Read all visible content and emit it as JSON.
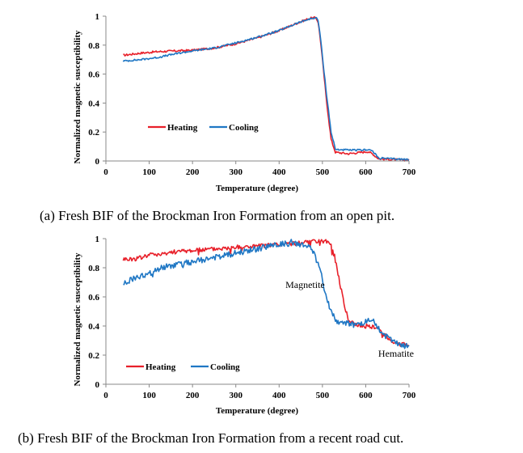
{
  "chart_data": [
    {
      "type": "line",
      "caption": "(a) Fresh BIF of the Brockman Iron Formation from an open pit.",
      "xlabel": "Temperature (degree)",
      "ylabel": "Normalized magnetic susceptibility",
      "xlim": [
        0,
        700
      ],
      "ylim": [
        0,
        1
      ],
      "x_ticks": [
        0,
        100,
        200,
        300,
        400,
        500,
        600,
        700
      ],
      "y_ticks": [
        0,
        0.2,
        0.4,
        0.6,
        0.8,
        1
      ],
      "y_tick_labels": [
        "0",
        "0.2",
        "0.4",
        "0.6",
        "0.8",
        "1"
      ],
      "legend_placement": "left-lower",
      "annotations": [],
      "series": [
        {
          "name": "Heating",
          "color": "#e8202a",
          "points": [
            [
              40,
              0.73
            ],
            [
              80,
              0.745
            ],
            [
              120,
              0.755
            ],
            [
              160,
              0.76
            ],
            [
              200,
              0.765
            ],
            [
              250,
              0.78
            ],
            [
              300,
              0.81
            ],
            [
              350,
              0.85
            ],
            [
              400,
              0.9
            ],
            [
              440,
              0.95
            ],
            [
              470,
              0.985
            ],
            [
              485,
              0.99
            ],
            [
              490,
              0.96
            ],
            [
              495,
              0.85
            ],
            [
              500,
              0.7
            ],
            [
              510,
              0.4
            ],
            [
              520,
              0.15
            ],
            [
              530,
              0.06
            ],
            [
              560,
              0.05
            ],
            [
              590,
              0.06
            ],
            [
              605,
              0.065
            ],
            [
              615,
              0.05
            ],
            [
              630,
              0.015
            ],
            [
              660,
              0.01
            ],
            [
              700,
              0.005
            ]
          ],
          "noise": 0.007
        },
        {
          "name": "Cooling",
          "color": "#1f77c4",
          "points": [
            [
              40,
              0.69
            ],
            [
              80,
              0.7
            ],
            [
              120,
              0.715
            ],
            [
              160,
              0.74
            ],
            [
              200,
              0.76
            ],
            [
              250,
              0.78
            ],
            [
              300,
              0.815
            ],
            [
              350,
              0.855
            ],
            [
              400,
              0.9
            ],
            [
              440,
              0.95
            ],
            [
              470,
              0.98
            ],
            [
              485,
              0.99
            ],
            [
              490,
              0.97
            ],
            [
              495,
              0.87
            ],
            [
              500,
              0.72
            ],
            [
              510,
              0.45
            ],
            [
              520,
              0.2
            ],
            [
              530,
              0.08
            ],
            [
              560,
              0.075
            ],
            [
              590,
              0.075
            ],
            [
              605,
              0.08
            ],
            [
              615,
              0.07
            ],
            [
              630,
              0.02
            ],
            [
              660,
              0.015
            ],
            [
              700,
              0.01
            ]
          ],
          "noise": 0.006
        }
      ]
    },
    {
      "type": "line",
      "caption": "(b) Fresh BIF of the Brockman Iron Formation from a recent road cut.",
      "xlabel": "Temperature (degree)",
      "ylabel": "Normalized magnetic susceptibility",
      "xlim": [
        0,
        700
      ],
      "ylim": [
        0,
        1
      ],
      "x_ticks": [
        0,
        100,
        200,
        300,
        400,
        500,
        600,
        700
      ],
      "y_ticks": [
        0,
        0.2,
        0.4,
        0.6,
        0.8,
        1
      ],
      "y_tick_labels": [
        "0",
        "0.2",
        "0.4",
        "0.6",
        "0.8",
        "1"
      ],
      "legend_placement": "left-lower",
      "annotations": [
        {
          "text": "Magnetite",
          "x": 460,
          "y": 0.66
        },
        {
          "text": "Hematite",
          "x": 670,
          "y": 0.19
        }
      ],
      "series": [
        {
          "name": "Heating",
          "color": "#e8202a",
          "points": [
            [
              40,
              0.86
            ],
            [
              60,
              0.86
            ],
            [
              80,
              0.87
            ],
            [
              100,
              0.89
            ],
            [
              130,
              0.9
            ],
            [
              160,
              0.91
            ],
            [
              200,
              0.92
            ],
            [
              250,
              0.93
            ],
            [
              300,
              0.94
            ],
            [
              350,
              0.95
            ],
            [
              400,
              0.96
            ],
            [
              450,
              0.97
            ],
            [
              490,
              0.98
            ],
            [
              510,
              0.98
            ],
            [
              520,
              0.96
            ],
            [
              530,
              0.85
            ],
            [
              540,
              0.7
            ],
            [
              550,
              0.55
            ],
            [
              560,
              0.45
            ],
            [
              570,
              0.42
            ],
            [
              590,
              0.4
            ],
            [
              610,
              0.4
            ],
            [
              630,
              0.38
            ],
            [
              650,
              0.32
            ],
            [
              670,
              0.28
            ],
            [
              690,
              0.27
            ],
            [
              700,
              0.26
            ]
          ],
          "noise": 0.015
        },
        {
          "name": "Cooling",
          "color": "#1f77c4",
          "points": [
            [
              40,
              0.69
            ],
            [
              60,
              0.72
            ],
            [
              80,
              0.74
            ],
            [
              100,
              0.76
            ],
            [
              130,
              0.8
            ],
            [
              160,
              0.82
            ],
            [
              200,
              0.84
            ],
            [
              250,
              0.87
            ],
            [
              300,
              0.9
            ],
            [
              350,
              0.93
            ],
            [
              400,
              0.96
            ],
            [
              430,
              0.97
            ],
            [
              450,
              0.96
            ],
            [
              470,
              0.94
            ],
            [
              480,
              0.9
            ],
            [
              490,
              0.82
            ],
            [
              500,
              0.72
            ],
            [
              510,
              0.6
            ],
            [
              520,
              0.5
            ],
            [
              530,
              0.44
            ],
            [
              550,
              0.42
            ],
            [
              580,
              0.41
            ],
            [
              610,
              0.44
            ],
            [
              630,
              0.38
            ],
            [
              650,
              0.32
            ],
            [
              670,
              0.28
            ],
            [
              690,
              0.26
            ],
            [
              700,
              0.26
            ]
          ],
          "noise": 0.02
        }
      ]
    }
  ]
}
